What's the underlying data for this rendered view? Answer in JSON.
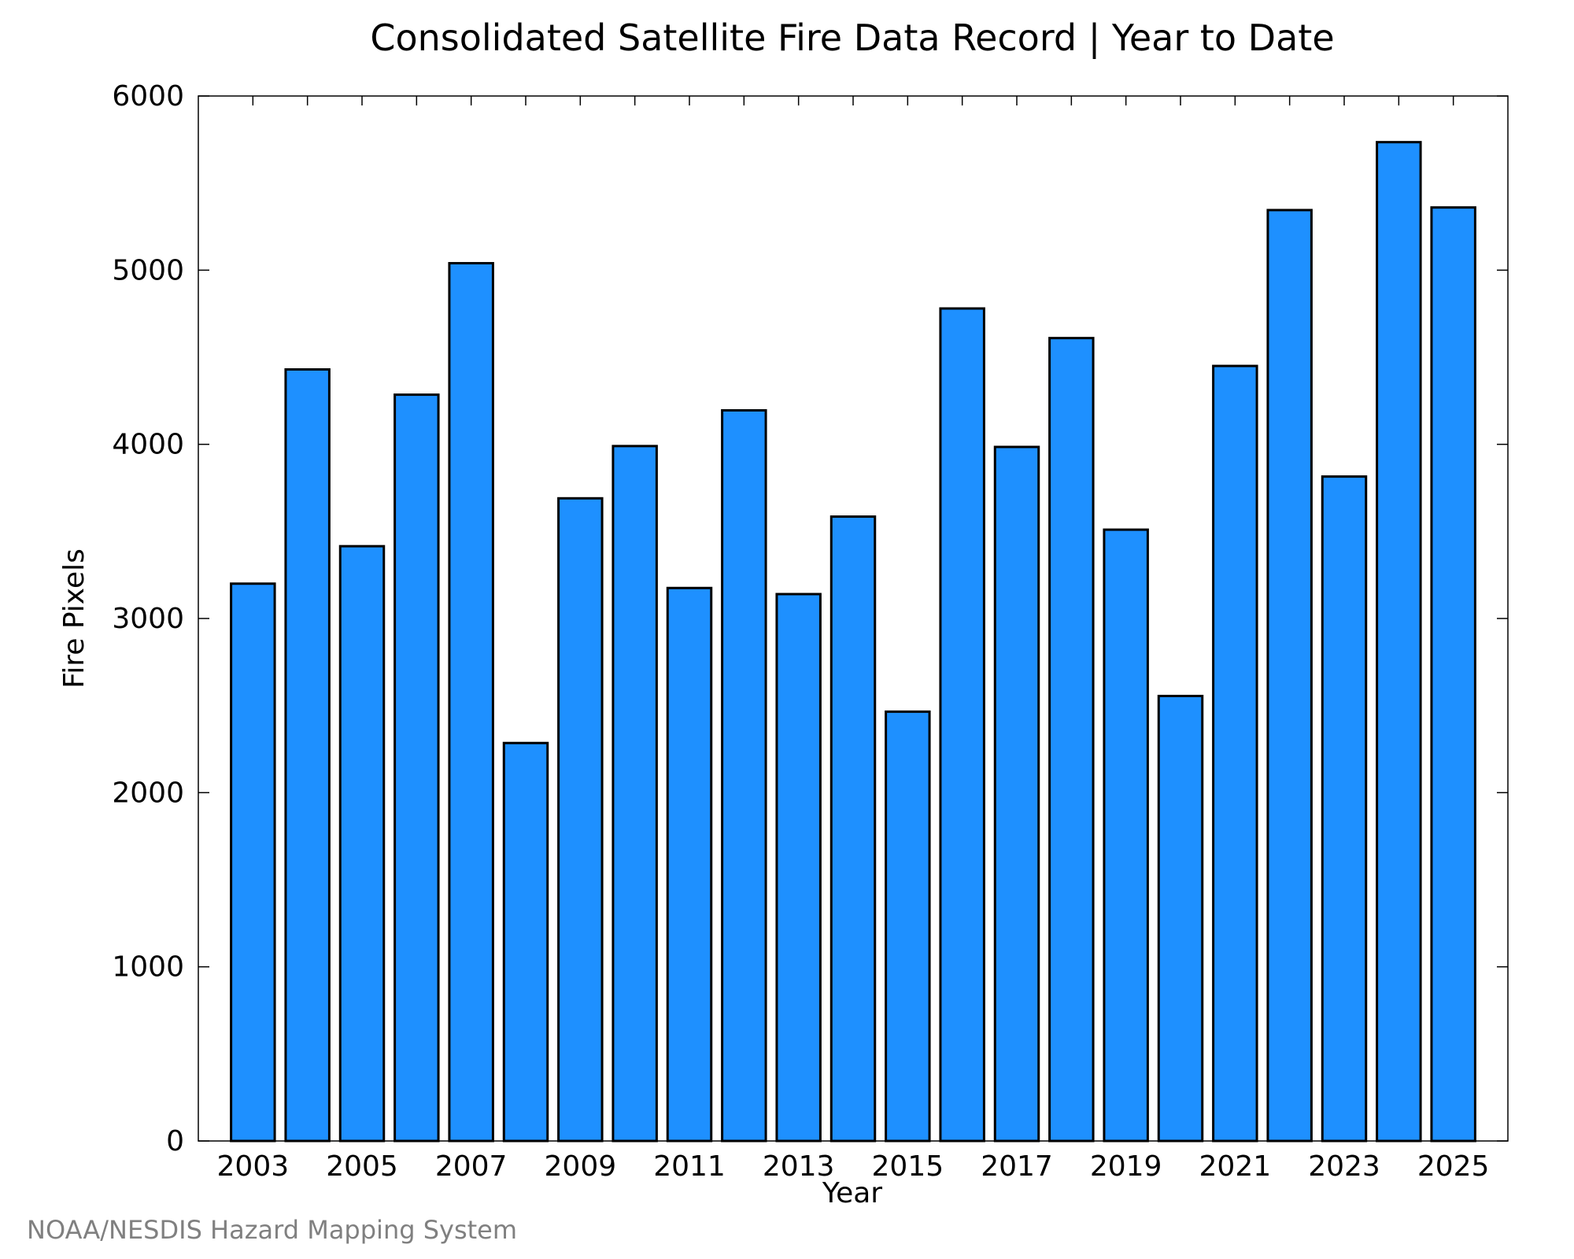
{
  "chart_data": {
    "type": "bar",
    "title": "Consolidated Satellite Fire Data Record | Year to Date",
    "xlabel": "Year",
    "ylabel": "Fire Pixels",
    "categories": [
      "2003",
      "2004",
      "2005",
      "2006",
      "2007",
      "2008",
      "2009",
      "2010",
      "2011",
      "2012",
      "2013",
      "2014",
      "2015",
      "2016",
      "2017",
      "2018",
      "2019",
      "2020",
      "2021",
      "2022",
      "2023",
      "2024",
      "2025"
    ],
    "values": [
      3200,
      4430,
      3415,
      4285,
      5040,
      2285,
      3690,
      3990,
      3175,
      4195,
      3140,
      3585,
      2465,
      4780,
      3985,
      4610,
      3510,
      2555,
      4450,
      5345,
      3815,
      5735,
      5360
    ],
    "x_tick_labels": [
      "2003",
      "2005",
      "2007",
      "2009",
      "2011",
      "2013",
      "2015",
      "2017",
      "2019",
      "2021",
      "2023",
      "2025"
    ],
    "y_tick_labels": [
      "0",
      "1000",
      "2000",
      "3000",
      "4000",
      "5000",
      "6000"
    ],
    "ylim": [
      0,
      6000
    ],
    "bar_color": "#1e90ff",
    "edge_color": "#000000",
    "grid": false,
    "legend": "none",
    "credit": "NOAA/NESDIS Hazard Mapping System"
  }
}
